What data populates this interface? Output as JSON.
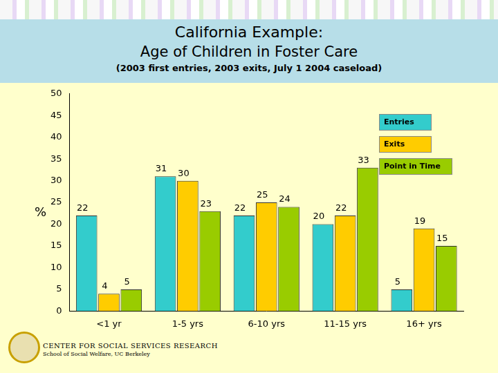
{
  "chart_data": {
    "type": "bar",
    "title": [
      "California Example:",
      "Age of Children in Foster Care"
    ],
    "subtitle": "(2003 first entries, 2003 exits, July 1 2004 caseload)",
    "y_label": "%",
    "categories": [
      "<1 yr",
      "1-5 yrs",
      "6-10 yrs",
      "11-15 yrs",
      "16+ yrs"
    ],
    "series": [
      {
        "name": "Entries",
        "color": "#33CCCC",
        "values": [
          22,
          31,
          22,
          20,
          5
        ]
      },
      {
        "name": "Exits",
        "color": "#FFCC00",
        "values": [
          4,
          30,
          25,
          22,
          19
        ]
      },
      {
        "name": "Point in Time",
        "color": "#99CC00",
        "values": [
          5,
          23,
          24,
          33,
          15
        ]
      }
    ],
    "ylim": [
      0,
      50
    ],
    "yticks": [
      0,
      5,
      10,
      15,
      20,
      25,
      30,
      35,
      40,
      45,
      50
    ],
    "grid": false,
    "legend": "upper right",
    "data_labels": true,
    "annotations": [
      "CENTER FOR SOCIAL SERVICES RESEARCH",
      "School of Social Welfare, UC Berkeley"
    ]
  }
}
